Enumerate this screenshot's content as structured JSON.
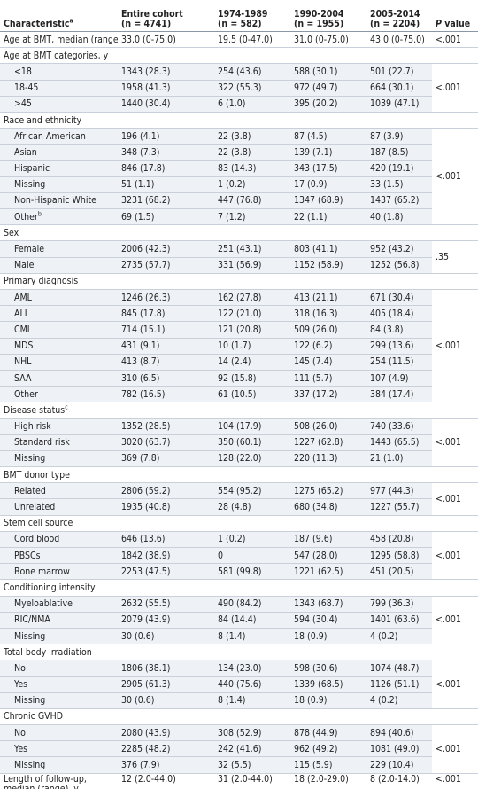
{
  "table": {
    "header": {
      "characteristic": {
        "label": "Characteristic",
        "note": "a"
      },
      "columns": [
        {
          "name": "Entire cohort",
          "n": "(n = 4741)"
        },
        {
          "name": "1974-1989",
          "n": "(n = 582)"
        },
        {
          "name": "1990-2004",
          "n": "(n = 1955)"
        },
        {
          "name": "2005-2014",
          "n": "(n = 2204)"
        }
      ],
      "p_value": {
        "italic": "P",
        "rest": "value"
      }
    },
    "groups": [
      {
        "p": "<.001",
        "rows": [
          {
            "label": "Age at BMT, median (range), y",
            "values": [
              "33.0 (0-75.0)",
              "19.5 (0-47.0)",
              "31.0 (0-75.0)",
              "43.0 (0-75.0)"
            ]
          }
        ]
      },
      {
        "title": "Age at BMT categories, y",
        "p": "<.001",
        "rows": [
          {
            "label": "<18",
            "values": [
              "1343 (28.3)",
              "254 (43.6)",
              "588 (30.1)",
              "501 (22.7)"
            ]
          },
          {
            "label": "18-45",
            "values": [
              "1958 (41.3)",
              "322 (55.3)",
              "972 (49.7)",
              "664 (30.1)"
            ]
          },
          {
            "label": ">45",
            "values": [
              "1440 (30.4)",
              "6 (1.0)",
              "395 (20.2)",
              "1039 (47.1)"
            ]
          }
        ]
      },
      {
        "title": "Race and ethnicity",
        "p": "<.001",
        "rows": [
          {
            "label": "African American",
            "values": [
              "196 (4.1)",
              "22 (3.8)",
              "87 (4.5)",
              "87 (3.9)"
            ]
          },
          {
            "label": "Asian",
            "values": [
              "348 (7.3)",
              "22 (3.8)",
              "139 (7.1)",
              "187 (8.5)"
            ]
          },
          {
            "label": "Hispanic",
            "values": [
              "846 (17.8)",
              "83 (14.3)",
              "343 (17.5)",
              "420 (19.1)"
            ]
          },
          {
            "label": "Missing",
            "values": [
              "51 (1.1)",
              "1 (0.2)",
              "17 (0.9)",
              "33 (1.5)"
            ]
          },
          {
            "label": "Non-Hispanic White",
            "values": [
              "3231 (68.2)",
              "447 (76.8)",
              "1347 (68.9)",
              "1437 (65.2)"
            ]
          },
          {
            "label": "Other",
            "note": "b",
            "values": [
              "69 (1.5)",
              "7 (1.2)",
              "22 (1.1)",
              "40 (1.8)"
            ]
          }
        ]
      },
      {
        "title": "Sex",
        "p": ".35",
        "rows": [
          {
            "label": "Female",
            "values": [
              "2006 (42.3)",
              "251 (43.1)",
              "803 (41.1)",
              "952 (43.2)"
            ]
          },
          {
            "label": "Male",
            "values": [
              "2735 (57.7)",
              "331 (56.9)",
              "1152 (58.9)",
              "1252 (56.8)"
            ]
          }
        ]
      },
      {
        "title": "Primary diagnosis",
        "p": "<.001",
        "rows": [
          {
            "label": "AML",
            "values": [
              "1246 (26.3)",
              "162 (27.8)",
              "413 (21.1)",
              "671 (30.4)"
            ]
          },
          {
            "label": "ALL",
            "values": [
              "845 (17.8)",
              "122 (21.0)",
              "318 (16.3)",
              "405 (18.4)"
            ]
          },
          {
            "label": "CML",
            "values": [
              "714 (15.1)",
              "121 (20.8)",
              "509 (26.0)",
              "84 (3.8)"
            ]
          },
          {
            "label": "MDS",
            "values": [
              "431 (9.1)",
              "10 (1.7)",
              "122 (6.2)",
              "299 (13.6)"
            ]
          },
          {
            "label": "NHL",
            "values": [
              "413 (8.7)",
              "14 (2.4)",
              "145 (7.4)",
              "254 (11.5)"
            ]
          },
          {
            "label": "SAA",
            "values": [
              "310 (6.5)",
              "92 (15.8)",
              "111 (5.7)",
              "107 (4.9)"
            ]
          },
          {
            "label": "Other",
            "values": [
              "782 (16.5)",
              "61 (10.5)",
              "337 (17.2)",
              "384 (17.4)"
            ]
          }
        ]
      },
      {
        "title": "Disease status",
        "title_note": "c",
        "p": "<.001",
        "rows": [
          {
            "label": "High risk",
            "values": [
              "1352 (28.5)",
              "104 (17.9)",
              "508 (26.0)",
              "740 (33.6)"
            ]
          },
          {
            "label": "Standard risk",
            "values": [
              "3020 (63.7)",
              "350 (60.1)",
              "1227 (62.8)",
              "1443 (65.5)"
            ]
          },
          {
            "label": "Missing",
            "values": [
              "369 (7.8)",
              "128 (22.0)",
              "220 (11.3)",
              "21 (1.0)"
            ]
          }
        ]
      },
      {
        "title": "BMT donor type",
        "p": "<.001",
        "rows": [
          {
            "label": "Related",
            "values": [
              "2806 (59.2)",
              "554 (95.2)",
              "1275 (65.2)",
              "977 (44.3)"
            ]
          },
          {
            "label": "Unrelated",
            "values": [
              "1935 (40.8)",
              "28 (4.8)",
              "680 (34.8)",
              "1227 (55.7)"
            ]
          }
        ]
      },
      {
        "title": "Stem cell source",
        "p": "<.001",
        "rows": [
          {
            "label": "Cord blood",
            "values": [
              "646 (13.6)",
              "1 (0.2)",
              "187 (9.6)",
              "458 (20.8)"
            ]
          },
          {
            "label": "PBSCs",
            "values": [
              "1842 (38.9)",
              "0",
              "547 (28.0)",
              "1295 (58.8)"
            ]
          },
          {
            "label": "Bone marrow",
            "values": [
              "2253 (47.5)",
              "581 (99.8)",
              "1221 (62.5)",
              "451 (20.5)"
            ]
          }
        ]
      },
      {
        "title": "Conditioning intensity",
        "p": "<.001",
        "rows": [
          {
            "label": "Myeloablative",
            "values": [
              "2632 (55.5)",
              "490 (84.2)",
              "1343 (68.7)",
              "799 (36.3)"
            ]
          },
          {
            "label": "RIC/NMA",
            "values": [
              "2079 (43.9)",
              "84 (14.4)",
              "594 (30.4)",
              "1401 (63.6)"
            ]
          },
          {
            "label": "Missing",
            "values": [
              "30 (0.6)",
              "8 (1.4)",
              "18 (0.9)",
              "4 (0.2)"
            ]
          }
        ]
      },
      {
        "title": "Total body irradiation",
        "p": "<.001",
        "rows": [
          {
            "label": "No",
            "values": [
              "1806 (38.1)",
              "134 (23.0)",
              "598 (30.6)",
              "1074 (48.7)"
            ]
          },
          {
            "label": "Yes",
            "values": [
              "2905 (61.3)",
              "440 (75.6)",
              "1339 (68.5)",
              "1126 (51.1)"
            ]
          },
          {
            "label": "Missing",
            "values": [
              "30 (0.6)",
              "8 (1.4)",
              "18 (0.9)",
              "4 (0.2)"
            ]
          }
        ]
      },
      {
        "title": "Chronic GVHD",
        "p": "<.001",
        "rows": [
          {
            "label": "No",
            "values": [
              "2080 (43.9)",
              "308 (52.9)",
              "878 (44.9)",
              "894 (40.6)"
            ]
          },
          {
            "label": "Yes",
            "values": [
              "2285 (48.2)",
              "242 (41.6)",
              "962 (49.2)",
              "1081 (49.0)"
            ]
          },
          {
            "label": "Missing",
            "values": [
              "376 (7.9)",
              "32 (5.5)",
              "115 (5.9)",
              "229 (10.4)"
            ]
          }
        ]
      },
      {
        "p": "<.001",
        "rows": [
          {
            "label": "Length of follow-up, median (range), y",
            "values": [
              "12 (2.0-44.0)",
              "31 (2.0-44.0)",
              "18 (2.0-29.0)",
              "8 (2.0-14.0)"
            ]
          }
        ]
      }
    ]
  }
}
